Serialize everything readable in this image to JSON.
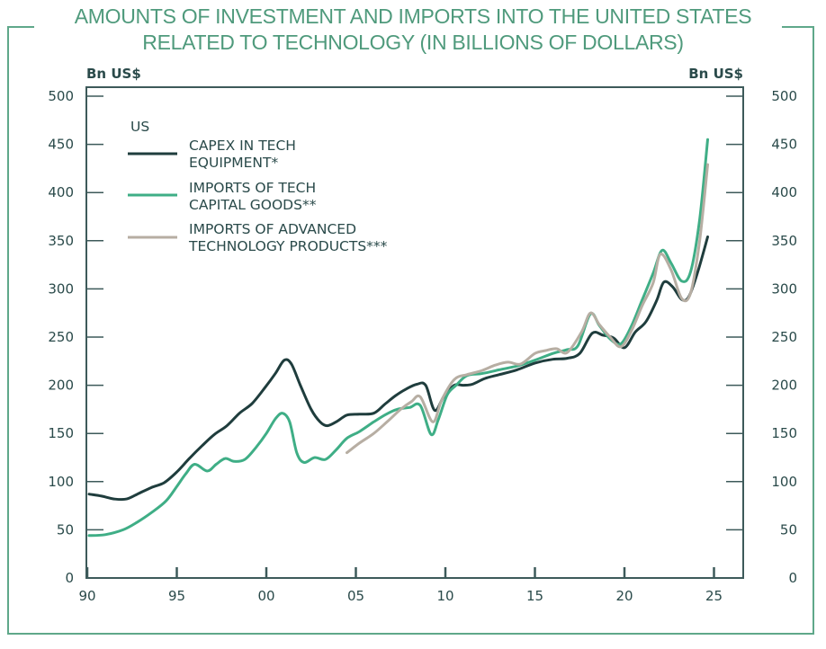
{
  "title_lines": [
    "AMOUNTS OF INVESTMENT AND IMPORTS INTO THE UNITED STATES",
    "RELATED TO TECHNOLOGY (IN BILLIONS OF DOLLARS)"
  ],
  "colors": {
    "frame": "#5fa88a",
    "title": "#4f9a7c",
    "axis": "#3d5a5a",
    "text": "#2a4a4a"
  },
  "chart_data": {
    "type": "line",
    "title": "AMOUNTS OF INVESTMENT AND IMPORTS INTO THE UNITED STATES RELATED TO TECHNOLOGY (IN BILLIONS OF DOLLARS)",
    "ylabel_left": "Bn US$",
    "ylabel_right": "Bn US$",
    "xlabel": "",
    "xlim": [
      1990,
      2026.75
    ],
    "ylim": [
      0,
      500
    ],
    "x_ticks": [
      1990,
      1995,
      2000,
      2005,
      2010,
      2015,
      2020,
      2025
    ],
    "x_tick_labels": [
      "90",
      "95",
      "00",
      "05",
      "10",
      "15",
      "20",
      "25"
    ],
    "y_ticks": [
      0,
      50,
      100,
      150,
      200,
      250,
      300,
      350,
      400,
      450,
      500
    ],
    "y_tick_labels": [
      "0",
      "50",
      "100",
      "150",
      "200",
      "250",
      "300",
      "350",
      "400",
      "450",
      "500"
    ],
    "grid": false,
    "legend": {
      "heading": "US",
      "placement": "top-left"
    },
    "series": [
      {
        "name": "CAPEX IN TECH EQUIPMENT*",
        "legend_lines": [
          "CAPEX IN TECH",
          "EQUIPMENT*"
        ],
        "color": "#1f3d3d",
        "x": [
          1990.1,
          1990.8,
          1991.5,
          1992.2,
          1992.9,
          1993.6,
          1994.3,
          1995.0,
          1995.7,
          1996.4,
          1997.1,
          1997.8,
          1998.5,
          1999.2,
          1999.9,
          2000.5,
          2001.0,
          2001.4,
          2001.9,
          2002.5,
          2003.0,
          2003.4,
          2003.9,
          2004.5,
          2005.2,
          2006.0,
          2006.6,
          2007.2,
          2007.8,
          2008.4,
          2008.9,
          2009.4,
          2009.9,
          2010.5,
          2011.0,
          2011.5,
          2012.2,
          2013.0,
          2014.0,
          2015.0,
          2016.0,
          2016.8,
          2017.5,
          2018.2,
          2018.8,
          2019.4,
          2020.0,
          2020.6,
          2021.2,
          2021.8,
          2022.2,
          2022.7,
          2023.2,
          2023.6,
          2024.1,
          2024.65
        ],
        "values": [
          87,
          85,
          82,
          82,
          88,
          94,
          99,
          110,
          124,
          137,
          149,
          158,
          171,
          181,
          197,
          212,
          226,
          222,
          200,
          175,
          162,
          158,
          162,
          169,
          170,
          171,
          180,
          189,
          196,
          201,
          200,
          174,
          188,
          200,
          200,
          201,
          207,
          211,
          216,
          223,
          227,
          228,
          233,
          254,
          252,
          249,
          239,
          255,
          266,
          288,
          307,
          302,
          289,
          292,
          318,
          354
        ]
      },
      {
        "name": "IMPORTS OF TECH CAPITAL GOODS**",
        "legend_lines": [
          "IMPORTS OF TECH",
          "CAPITAL GOODS**"
        ],
        "color": "#3fae86",
        "x": [
          1990.1,
          1991.0,
          1992.0,
          1992.8,
          1993.6,
          1994.4,
          1995.0,
          1995.5,
          1996.0,
          1996.7,
          1997.2,
          1997.7,
          1998.2,
          1998.8,
          1999.4,
          2000.0,
          2000.5,
          2000.9,
          2001.3,
          2001.7,
          2002.1,
          2002.7,
          2003.3,
          2003.9,
          2004.5,
          2005.2,
          2006.0,
          2006.7,
          2007.3,
          2008.0,
          2008.6,
          2009.2,
          2009.6,
          2010.1,
          2010.6,
          2011.2,
          2012.0,
          2013.0,
          2014.0,
          2015.0,
          2016.0,
          2016.8,
          2017.4,
          2018.1,
          2018.6,
          2019.2,
          2019.8,
          2020.4,
          2021.0,
          2021.6,
          2022.1,
          2022.6,
          2023.2,
          2023.7,
          2024.2,
          2024.65
        ],
        "values": [
          44,
          45,
          50,
          58,
          68,
          80,
          95,
          108,
          118,
          111,
          118,
          124,
          121,
          123,
          135,
          150,
          165,
          171,
          162,
          130,
          120,
          125,
          123,
          133,
          145,
          152,
          162,
          170,
          175,
          177,
          179,
          149,
          164,
          190,
          200,
          210,
          212,
          216,
          220,
          226,
          233,
          237,
          241,
          274,
          262,
          248,
          243,
          262,
          289,
          316,
          340,
          327,
          308,
          318,
          372,
          455
        ]
      },
      {
        "name": "IMPORTS OF ADVANCED TECHNOLOGY PRODUCTS***",
        "legend_lines": [
          "IMPORTS OF ADVANCED",
          "TECHNOLOGY PRODUCTS***"
        ],
        "color": "#b7aea3",
        "x": [
          2004.5,
          2005.2,
          2006.0,
          2006.8,
          2007.5,
          2008.1,
          2008.6,
          2009.3,
          2009.8,
          2010.5,
          2011.2,
          2012.0,
          2012.8,
          2013.5,
          2014.2,
          2015.0,
          2015.6,
          2016.2,
          2016.8,
          2017.6,
          2018.1,
          2018.6,
          2019.2,
          2019.8,
          2020.4,
          2021.0,
          2021.6,
          2022.0,
          2022.6,
          2023.2,
          2023.7,
          2024.2,
          2024.65
        ],
        "values": [
          130,
          140,
          150,
          163,
          175,
          183,
          188,
          162,
          185,
          206,
          211,
          215,
          221,
          224,
          222,
          233,
          236,
          238,
          234,
          255,
          275,
          263,
          250,
          240,
          257,
          283,
          306,
          336,
          320,
          290,
          296,
          350,
          429
        ]
      }
    ]
  }
}
